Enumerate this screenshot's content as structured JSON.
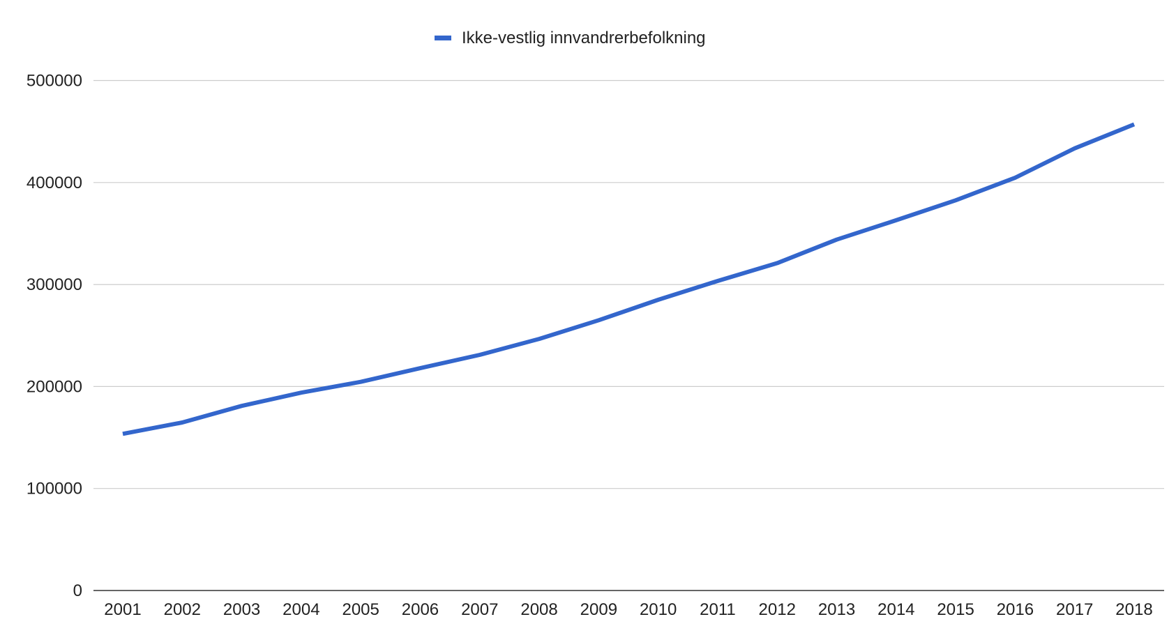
{
  "chart_data": {
    "type": "line",
    "title": "",
    "xlabel": "",
    "ylabel": "",
    "legend_position": "top",
    "grid": true,
    "ylim": [
      0,
      500000
    ],
    "yticks": [
      "0",
      "100000",
      "200000",
      "300000",
      "400000",
      "500000"
    ],
    "categories": [
      "2001",
      "2002",
      "2003",
      "2004",
      "2005",
      "2006",
      "2007",
      "2008",
      "2009",
      "2010",
      "2011",
      "2012",
      "2013",
      "2014",
      "2015",
      "2016",
      "2017",
      "2018"
    ],
    "series": [
      {
        "name": "Ikke-vestlig innvandrerbefolkning",
        "color": "#3366cc",
        "values": [
          153600,
          164700,
          181000,
          194000,
          204600,
          218000,
          231000,
          246700,
          265000,
          285000,
          303500,
          321000,
          344000,
          363000,
          382600,
          404700,
          433500,
          457000
        ]
      }
    ]
  }
}
